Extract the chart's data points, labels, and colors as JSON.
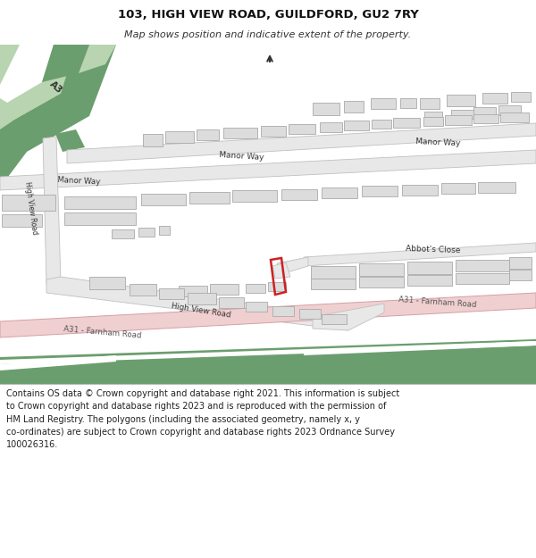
{
  "title": "103, HIGH VIEW ROAD, GUILDFORD, GU2 7RY",
  "subtitle": "Map shows position and indicative extent of the property.",
  "footer": "Contains OS data © Crown copyright and database right 2021. This information is subject\nto Crown copyright and database rights 2023 and is reproduced with the permission of\nHM Land Registry. The polygons (including the associated geometry, namely x, y\nco-ordinates) are subject to Crown copyright and database rights 2023 Ordnance Survey\n100026316.",
  "title_fontsize": 9.5,
  "subtitle_fontsize": 8.0,
  "footer_fontsize": 7.0,
  "green_dark": "#6b9e6e",
  "green_light": "#b8d4b0",
  "road_fill": "#e8e8e8",
  "road_border": "#c0c0c0",
  "pink_road": "#f0cfd0",
  "pink_border": "#d4a0a4",
  "building_fill": "#dcdcdc",
  "building_border": "#aaaaaa",
  "plot_color": "#cc2222",
  "text_color": "#333333",
  "white": "#ffffff"
}
